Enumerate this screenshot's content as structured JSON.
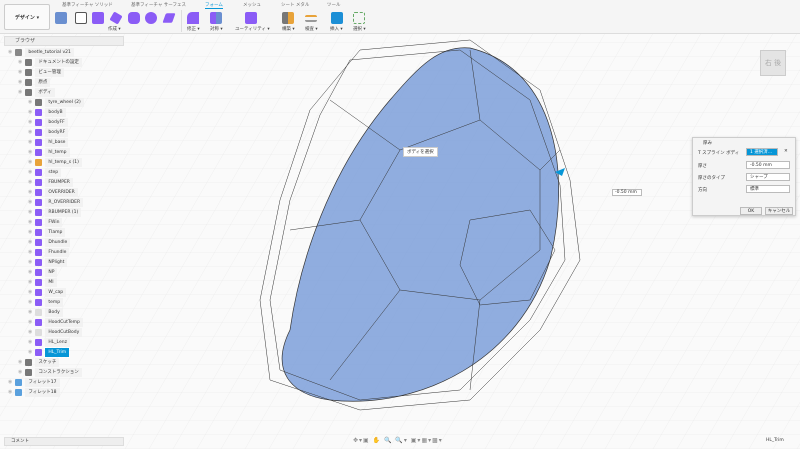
{
  "toolbar": {
    "workspace": "デザイン ▾",
    "tabs": [
      "基準フィーチャ ソリッド",
      "基準フィーチャ サーフェス",
      "フォーム",
      "メッシュ",
      "シート メタル",
      "ツール"
    ],
    "active_tab": "フォーム",
    "groups": [
      "作成 ▾",
      "修正 ▾",
      "対称 ▾",
      "ユーティリティ ▾",
      "構築 ▾",
      "検査 ▾",
      "挿入 ▾",
      "選択 ▾"
    ]
  },
  "browser": {
    "title": "ブラウザ",
    "items": [
      {
        "label": "beetle_tutorial v21",
        "type": "root",
        "indent": 0
      },
      {
        "label": "ドキュメントの設定",
        "type": "gear",
        "indent": 1
      },
      {
        "label": "ビュー管理",
        "type": "folder",
        "indent": 1
      },
      {
        "label": "原点",
        "type": "folder",
        "indent": 1
      },
      {
        "label": "ボディ",
        "type": "folder",
        "indent": 1
      },
      {
        "label": "tyre_wheel (2)",
        "type": "folder",
        "indent": 2
      },
      {
        "label": "bodyB",
        "type": "tspline",
        "indent": 2
      },
      {
        "label": "bodyFF",
        "type": "tspline",
        "indent": 2
      },
      {
        "label": "bodyRF",
        "type": "tspline",
        "indent": 2
      },
      {
        "label": "hl_base",
        "type": "tspline",
        "indent": 2
      },
      {
        "label": "hl_temp",
        "type": "tspline",
        "indent": 2
      },
      {
        "label": "hl_temp_s (1)",
        "type": "orange",
        "indent": 2
      },
      {
        "label": "step",
        "type": "tspline",
        "indent": 2
      },
      {
        "label": "FBUMPER",
        "type": "tspline",
        "indent": 2
      },
      {
        "label": "OVERRIDER",
        "type": "tspline",
        "indent": 2
      },
      {
        "label": "R_OVERRIDER",
        "type": "tspline",
        "indent": 2
      },
      {
        "label": "RBUMPER (1)",
        "type": "tspline",
        "indent": 2
      },
      {
        "label": "FWin",
        "type": "tspline",
        "indent": 2
      },
      {
        "label": "Tlamp",
        "type": "tspline",
        "indent": 2
      },
      {
        "label": "Dhundle",
        "type": "tspline",
        "indent": 2
      },
      {
        "label": "Fhundle",
        "type": "tspline",
        "indent": 2
      },
      {
        "label": "NPlight",
        "type": "tspline",
        "indent": 2
      },
      {
        "label": "NP",
        "type": "tspline",
        "indent": 2
      },
      {
        "label": "MI",
        "type": "tspline",
        "indent": 2
      },
      {
        "label": "W_cap",
        "type": "tspline",
        "indent": 2
      },
      {
        "label": "temp",
        "type": "tspline",
        "indent": 2
      },
      {
        "label": "Body",
        "type": "solid",
        "indent": 2
      },
      {
        "label": "HoodCutTemp",
        "type": "tspline",
        "indent": 2
      },
      {
        "label": "HoodCutBody",
        "type": "solid",
        "indent": 2
      },
      {
        "label": "HL_Lenz",
        "type": "tspline",
        "indent": 2
      },
      {
        "label": "HL_Trim",
        "type": "tspline",
        "indent": 2,
        "selected": true
      },
      {
        "label": "スケッチ",
        "type": "folder",
        "indent": 1
      },
      {
        "label": "コンストラクション",
        "type": "folder",
        "indent": 1
      },
      {
        "label": "フィレット17",
        "type": "feature",
        "indent": 0
      },
      {
        "label": "フィレット18",
        "type": "feature",
        "indent": 0
      }
    ]
  },
  "viewport": {
    "tooltip": "ボディを選択",
    "dimension": "-0.50 mm",
    "viewcube": "右 後"
  },
  "dialog": {
    "title": "厚み",
    "tspline_label": "T スプライン ボディ",
    "tspline_value": "1 選択済...",
    "thickness_label": "厚さ",
    "thickness_value": "-0.50 mm",
    "type_label": "厚さのタイプ",
    "type_value": "シャープ",
    "direction_label": "方向",
    "direction_value": "標準",
    "ok": "OK",
    "cancel": "キャンセル"
  },
  "comments": {
    "label": "コメント"
  },
  "status": {
    "selection": "HL_Trim"
  },
  "colors": {
    "accent": "#0696d7",
    "tspline": "#8b5cf6",
    "body": "#7d9fd9"
  }
}
